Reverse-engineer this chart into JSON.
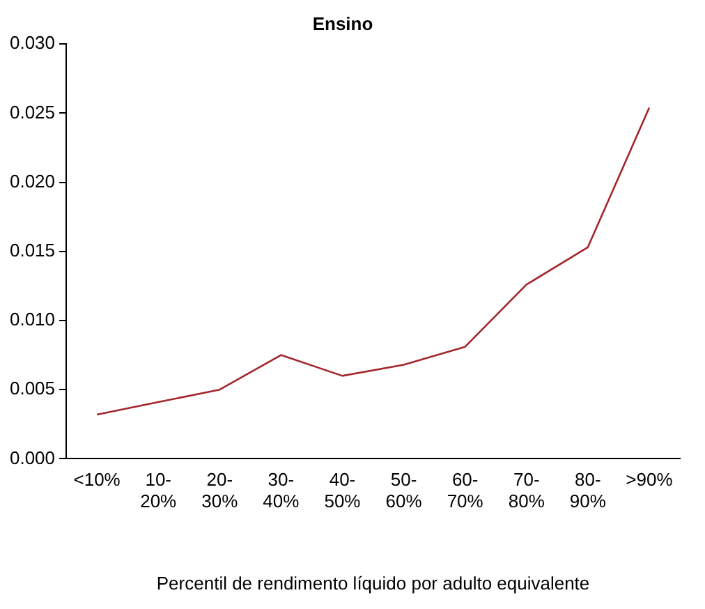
{
  "chart_data": {
    "type": "line",
    "title": "Ensino",
    "xlabel": "Percentil de rendimento líquido por adulto equivalente",
    "categories": [
      "<10%",
      "10-20%",
      "20-30%",
      "30-40%",
      "40-50%",
      "50-60%",
      "60-70%",
      "70-80%",
      "80-90%",
      ">90%"
    ],
    "series": [
      {
        "color": "#a3262c",
        "values": [
          0.0032,
          0.0041,
          0.005,
          0.0075,
          0.006,
          0.0068,
          0.0081,
          0.0126,
          0.0153,
          0.0254
        ]
      }
    ],
    "ylim": [
      0,
      0.03
    ],
    "yticks": [
      {
        "value": 0,
        "label": "0.000"
      },
      {
        "value": 0.005,
        "label": "0.005"
      },
      {
        "value": 0.01,
        "label": "0.010"
      },
      {
        "value": 0.015,
        "label": "0.015"
      },
      {
        "value": 0.02,
        "label": "0.020"
      },
      {
        "value": 0.025,
        "label": "0.025"
      },
      {
        "value": 0.03,
        "label": "0.030"
      }
    ],
    "grid": false,
    "legend": false,
    "marker": "none",
    "line_style": "solid"
  }
}
